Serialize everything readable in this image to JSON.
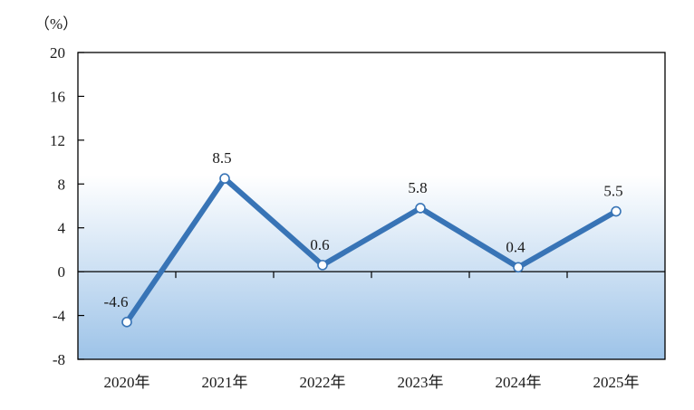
{
  "chart_data": {
    "type": "line",
    "unit_label": "（%）",
    "categories": [
      "2020年",
      "2021年",
      "2022年",
      "2023年",
      "2024年",
      "2025年"
    ],
    "series": [
      {
        "values": [
          -4.6,
          8.5,
          0.6,
          5.8,
          0.4,
          5.5
        ]
      }
    ],
    "data_labels": [
      "-4.6",
      "8.5",
      "0.6",
      "5.8",
      "0.4",
      "5.5"
    ],
    "yticks": [
      "20",
      "16",
      "12",
      "8",
      "4",
      "0",
      "-4",
      "-8"
    ],
    "ylim": [
      -8,
      20
    ],
    "grid": false,
    "legend": "none",
    "colors": {
      "line": "#3874b6",
      "marker_fill": "#ffffff",
      "gradient_top": "#ffffff",
      "gradient_bottom": "#9dc3e8",
      "axis": "#000000"
    }
  }
}
